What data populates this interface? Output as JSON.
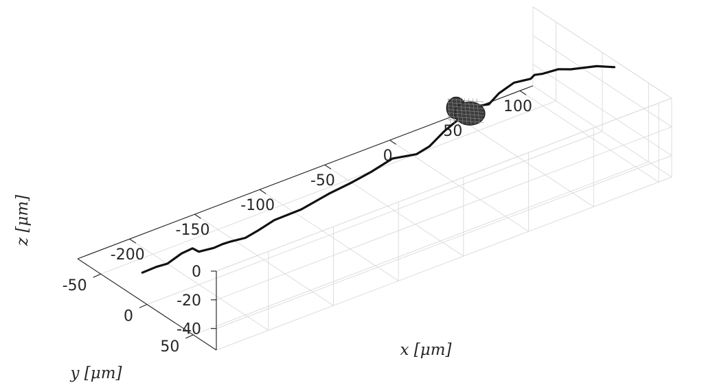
{
  "chart_data": {
    "type": "line",
    "subtype": "3d-line",
    "title": "",
    "xlabel": "x [μm]",
    "ylabel": "y [μm]",
    "zlabel": "z [μm]",
    "xticks": [
      "-200",
      "-150",
      "-100",
      "-50",
      "0",
      "50",
      "100"
    ],
    "yticks": [
      "50",
      "0",
      "-50"
    ],
    "zticks": [
      "0",
      "-20",
      "-40"
    ],
    "xlim": [
      -240,
      110
    ],
    "ylim": [
      -75,
      75
    ],
    "zlim": [
      -55,
      0
    ],
    "grid": true,
    "box": true,
    "legend": "none",
    "line_color": "#111111",
    "series": [
      {
        "x": [
          -240,
          -230,
          -220,
          -212,
          -205,
          -198,
          -190,
          -182,
          -175,
          -165,
          -155,
          -140,
          -120,
          -100,
          -85,
          -70,
          -55,
          -40,
          -30,
          -20,
          -10,
          -5,
          0,
          10,
          22,
          35,
          45,
          55,
          60,
          72,
          80,
          95,
          105
        ],
        "y": [
          -5,
          -4,
          -6,
          -2,
          0,
          -3,
          2,
          0,
          -1,
          1,
          0,
          -3,
          -2,
          0,
          2,
          3,
          5,
          10,
          10,
          12,
          15,
          12,
          14,
          18,
          12,
          10,
          14,
          4,
          6,
          6,
          8,
          15,
          20
        ],
        "z": [
          -35,
          -34,
          -36,
          -30,
          -28,
          -34,
          -32,
          -33,
          -34,
          -34,
          -33,
          -32,
          -31,
          -26,
          -23,
          -20,
          -15,
          -15,
          -13,
          -5,
          2,
          4,
          6,
          6,
          7,
          9,
          10,
          5,
          5,
          4,
          2,
          2,
          0
        ]
      },
      {
        "x": [
          -17,
          -15,
          -13
        ],
        "y": [
          14,
          20,
          26
        ],
        "z": [
          9,
          9,
          10
        ]
      }
    ],
    "soma": {
      "x": -12,
      "y": 18,
      "z": 10
    }
  }
}
